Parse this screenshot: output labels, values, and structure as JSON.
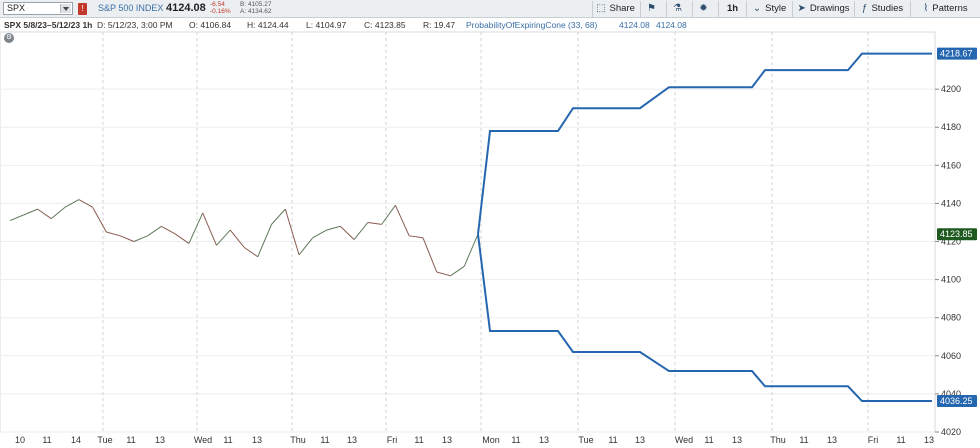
{
  "toolbar": {
    "symbol": "SPX",
    "index_name": "S&P 500 INDEX",
    "last_price": "4124.08",
    "change": "-6.54",
    "change_pct": "-0.16%",
    "bid": "B: 4105.27",
    "ask": "A: 4134.62",
    "buttons": {
      "share": "Share",
      "timeframe": "1h",
      "style": "Style",
      "drawings": "Drawings",
      "studies": "Studies",
      "patterns": "Patterns"
    }
  },
  "infobar": {
    "title": "SPX 5/8/23–5/12/23 1h",
    "date": "D: 5/12/23, 3:00 PM",
    "open": "O: 4106.84",
    "high": "H: 4124.44",
    "low": "L: 4104.97",
    "close": "C: 4123.85",
    "range": "R: 19.47",
    "study": "ProbabilityOfExpiringCone (33, 68)",
    "study_v1": "4124.08",
    "study_v2": "4124.08"
  },
  "icons": {
    "share": "share-icon",
    "flag": "flag-icon",
    "flask": "flask-icon",
    "gear": "gear-icon",
    "style": "chevron-down-icon",
    "drawings": "cursor-icon",
    "studies": "studies-icon",
    "patterns": "patterns-icon"
  },
  "chart_data": {
    "type": "line",
    "ylim": [
      4020,
      4230
    ],
    "y_ticks": [
      4020,
      4040,
      4060,
      4080,
      4100,
      4120,
      4140,
      4160,
      4180,
      4200
    ],
    "x_labels": [
      "10",
      "11",
      "14",
      "Tue",
      "11",
      "13",
      "Wed",
      "11",
      "13",
      "Thu",
      "11",
      "13",
      "Fri",
      "11",
      "13",
      "Mon",
      "11",
      "13",
      "Tue",
      "11",
      "13",
      "Wed",
      "11",
      "13",
      "Thu",
      "11",
      "13",
      "Fri",
      "11",
      "13"
    ],
    "price_series": [
      4131,
      4134,
      4137,
      4132,
      4138,
      4142,
      4138,
      4125,
      4123,
      4120,
      4123,
      4128,
      4124,
      4119,
      4135,
      4118,
      4126,
      4117,
      4112,
      4129,
      4137,
      4113,
      4122,
      4126,
      4128,
      4121,
      4130,
      4129,
      4139,
      4123,
      4122,
      4104,
      4102,
      4107,
      4123.85
    ],
    "cone_upper": [
      4123.85,
      4178,
      4178,
      4178,
      4190,
      4190,
      4190,
      4201,
      4201,
      4201,
      4210,
      4210,
      4210,
      4218.67,
      4218.67,
      4218.67
    ],
    "cone_lower": [
      4123.85,
      4073,
      4073,
      4073,
      4062,
      4062,
      4062,
      4052,
      4052,
      4052,
      4044,
      4044,
      4044,
      4036.25,
      4036.25,
      4036.25
    ],
    "cone_labels": {
      "upper": "4218.67",
      "lower": "4036.25"
    },
    "last_price_label": "4123.85",
    "colors": {
      "price": "#6d6a66",
      "cone": "#2566b0",
      "last_price_tag": "#1e5a20"
    }
  }
}
